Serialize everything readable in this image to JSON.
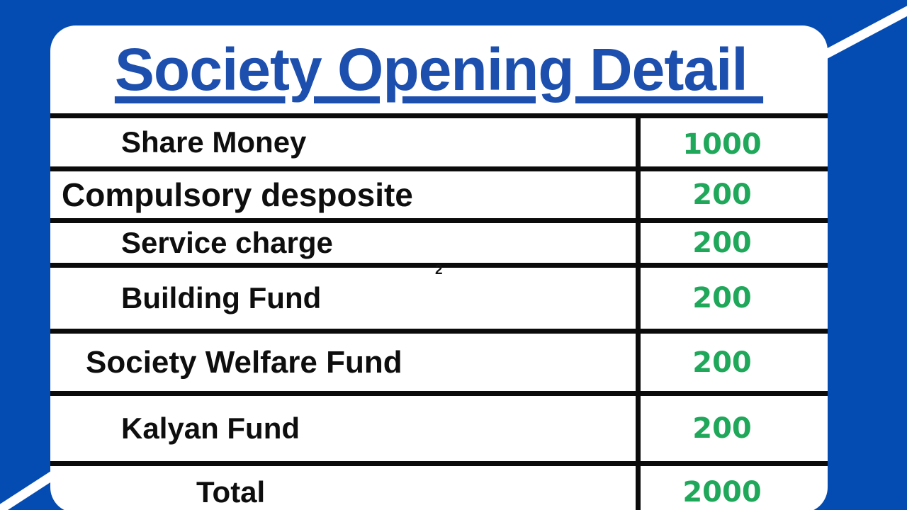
{
  "page": {
    "title": "Society Opening Detail "
  },
  "table": {
    "rows": [
      {
        "label": "Share Money",
        "value": "1000"
      },
      {
        "label": "Compulsory desposite",
        "value": "200"
      },
      {
        "label": "Service charge",
        "value": "200"
      },
      {
        "label": "Building Fund",
        "value": "200"
      },
      {
        "label": "Society Welfare Fund",
        "value": "200"
      },
      {
        "label": "Kalyan Fund",
        "value": "200"
      },
      {
        "label": "Total",
        "value": "2000"
      }
    ],
    "stray_mark": "2"
  },
  "colors": {
    "background_blue": "#054cb2",
    "title_blue": "#1d4fae",
    "value_green": "#1fa75a",
    "line_black": "#0b0b0b",
    "card_white": "#ffffff"
  }
}
